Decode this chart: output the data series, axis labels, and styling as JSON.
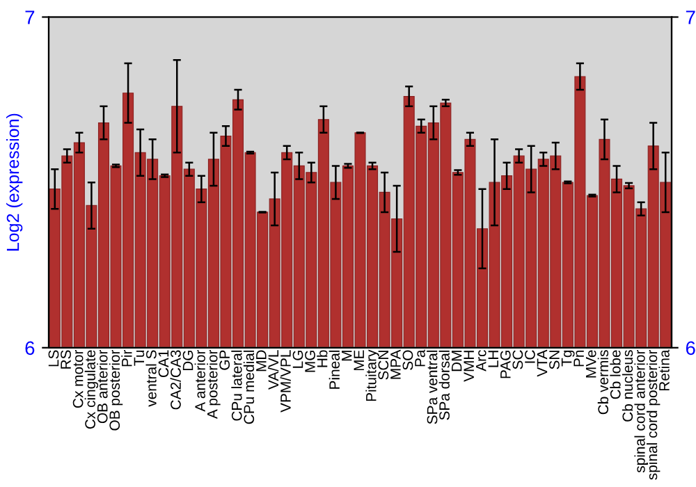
{
  "chart_data": {
    "type": "bar",
    "ylabel": "Log2 (expression)",
    "categories": [
      "LS",
      "RS",
      "Cx motor",
      "Cx cingulate",
      "OB anterior",
      "OB posterior",
      "Pir",
      "Tu",
      "ventral S",
      "CA1",
      "CA2/CA3",
      "DG",
      "A anterior",
      "A posterior",
      "GP",
      "CPu lateral",
      "CPu medial",
      "MD",
      "VA/VL",
      "VPM/VPL",
      "LG",
      "MG",
      "Hb",
      "Pineal",
      "M",
      "ME",
      "Pituitary",
      "SCN",
      "MPA",
      "SO",
      "Pa",
      "SPa ventral",
      "SPa dorsal",
      "DM",
      "VMH",
      "Arc",
      "LH",
      "PAG",
      "SC",
      "IC",
      "VTA",
      "SN",
      "Tg",
      "Pn",
      "MVe",
      "Cb vermis",
      "Cb lobe",
      "Cb nucleus",
      "spinal cord anterior",
      "spinal cord posterior",
      "Retina"
    ],
    "values": [
      6.48,
      6.58,
      6.62,
      6.43,
      6.68,
      6.55,
      6.77,
      6.59,
      6.57,
      6.52,
      6.73,
      6.54,
      6.48,
      6.57,
      6.64,
      6.75,
      6.59,
      6.41,
      6.45,
      6.59,
      6.55,
      6.53,
      6.69,
      6.5,
      6.55,
      6.65,
      6.55,
      6.47,
      6.39,
      6.76,
      6.67,
      6.68,
      6.74,
      6.53,
      6.63,
      6.36,
      6.5,
      6.52,
      6.58,
      6.54,
      6.57,
      6.58,
      6.5,
      6.82,
      6.46,
      6.63,
      6.51,
      6.49,
      6.42,
      6.61,
      6.5
    ],
    "errors": [
      0.06,
      0.02,
      0.03,
      0.07,
      0.05,
      0.004,
      0.09,
      0.07,
      0.06,
      0.004,
      0.14,
      0.02,
      0.04,
      0.08,
      0.03,
      0.03,
      0.003,
      0.001,
      0.08,
      0.02,
      0.04,
      0.03,
      0.04,
      0.05,
      0.006,
      0.001,
      0.01,
      0.06,
      0.1,
      0.03,
      0.02,
      0.05,
      0.01,
      0.007,
      0.02,
      0.12,
      0.13,
      0.04,
      0.02,
      0.07,
      0.02,
      0.04,
      0.003,
      0.04,
      0.003,
      0.06,
      0.04,
      0.008,
      0.02,
      0.07,
      0.09
    ],
    "color": "#b0302e",
    "ylim": [
      6,
      7
    ],
    "yticks": [
      6,
      7
    ],
    "y2lim": [
      6,
      7
    ],
    "y2ticks": [
      6,
      7
    ],
    "grid": false
  }
}
